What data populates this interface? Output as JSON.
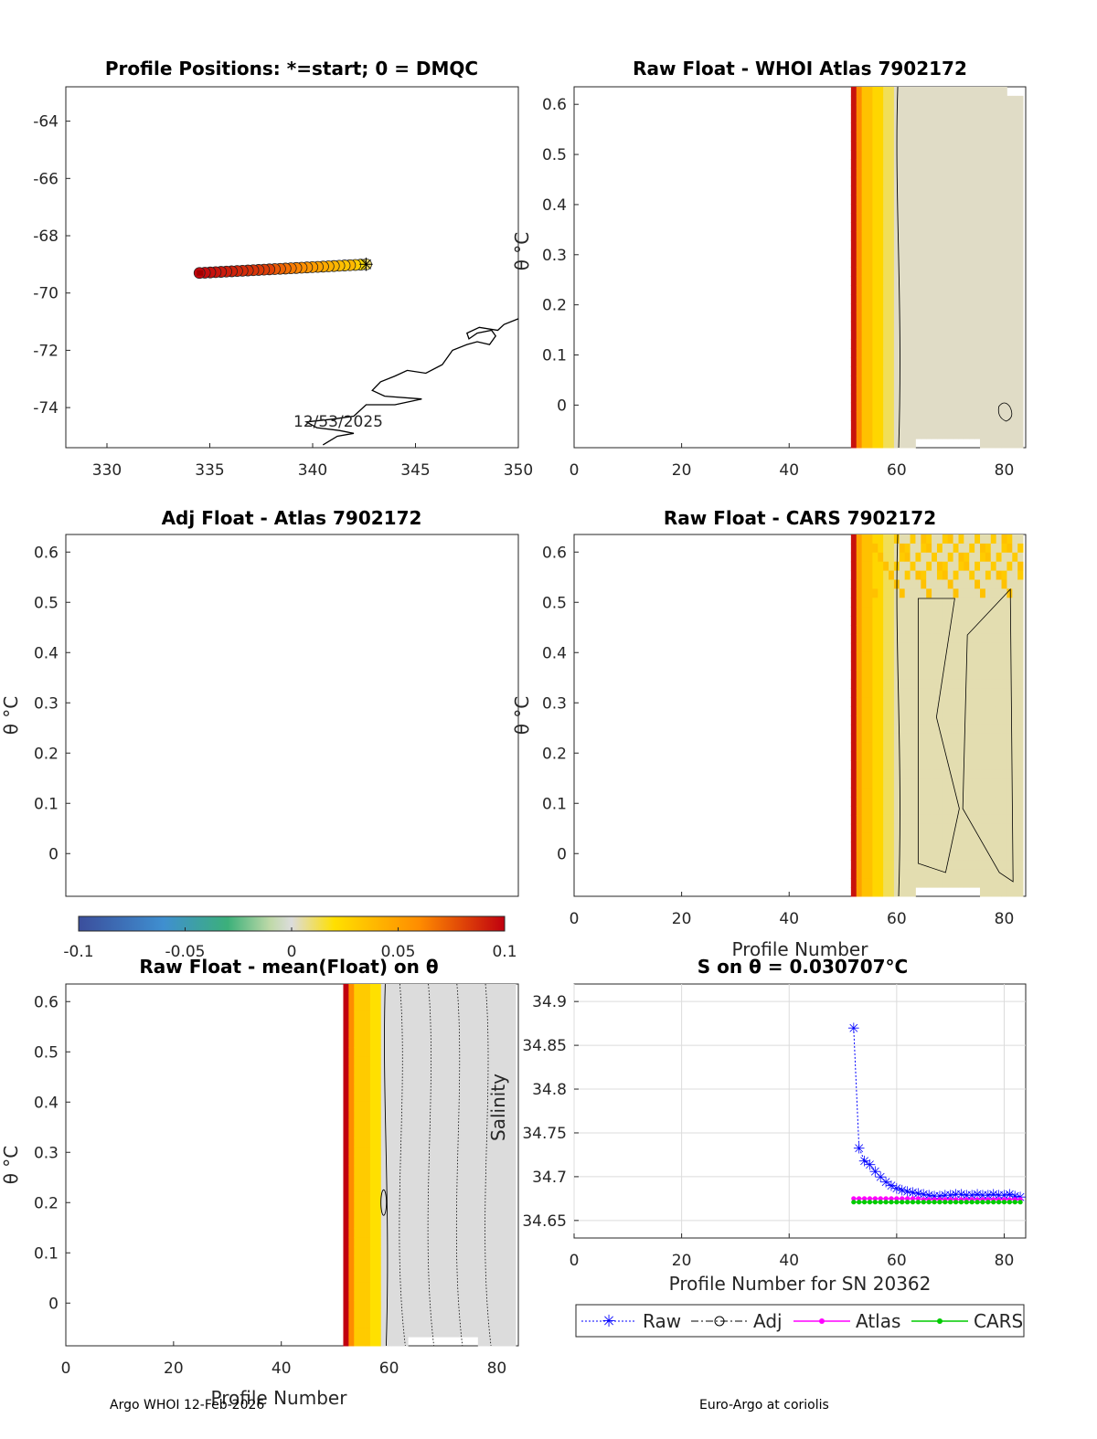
{
  "footer": {
    "left": "Argo WHOI 12-Feb-2026",
    "right": "Euro-Argo at coriolis"
  },
  "colorbar": {
    "ticks": [
      "-0.1",
      "-0.05",
      "0",
      "0.05",
      "0.1"
    ],
    "min": -0.1,
    "max": 0.1
  },
  "chart_data": [
    {
      "id": "map",
      "type": "scatter",
      "title": "Profile Positions: *=start; 0 = DMQC",
      "xlabel": "",
      "ylabel": "",
      "xlim": [
        328,
        350
      ],
      "ylim": [
        -75.4,
        -62.8
      ],
      "xticks": [
        "330",
        "335",
        "340",
        "345",
        "350"
      ],
      "yticks": [
        "-64",
        "-66",
        "-68",
        "-70",
        "-72",
        "-74"
      ],
      "annotation": "12/53/2025",
      "track": {
        "start_lon": 342.6,
        "start_lat": -69.0,
        "end_lon": 334.5,
        "end_lat": -69.3
      },
      "coastline": [
        [
          340.5,
          -75.3
        ],
        [
          341.2,
          -75.0
        ],
        [
          342.0,
          -74.9
        ],
        [
          341.3,
          -74.8
        ],
        [
          340.2,
          -74.7
        ],
        [
          339.7,
          -74.5
        ],
        [
          341.0,
          -74.4
        ],
        [
          342.0,
          -74.3
        ],
        [
          342.6,
          -73.9
        ],
        [
          344.0,
          -73.9
        ],
        [
          345.3,
          -73.7
        ],
        [
          343.5,
          -73.6
        ],
        [
          342.9,
          -73.4
        ],
        [
          343.3,
          -73.1
        ],
        [
          344.0,
          -72.9
        ],
        [
          344.6,
          -72.7
        ],
        [
          345.5,
          -72.8
        ],
        [
          346.3,
          -72.5
        ],
        [
          346.8,
          -72.0
        ],
        [
          347.5,
          -71.8
        ],
        [
          348.0,
          -71.7
        ],
        [
          348.6,
          -71.8
        ],
        [
          348.9,
          -71.5
        ],
        [
          348.7,
          -71.3
        ],
        [
          348.0,
          -71.4
        ],
        [
          347.6,
          -71.6
        ],
        [
          347.5,
          -71.4
        ],
        [
          348.1,
          -71.2
        ],
        [
          349.0,
          -71.3
        ],
        [
          349.3,
          -71.1
        ],
        [
          350,
          -70.9
        ]
      ]
    },
    {
      "id": "whoi",
      "type": "heatmap",
      "title": "Raw Float - WHOI Atlas  7902172",
      "xlabel": "",
      "ylabel": "θ °C",
      "xlim": [
        0,
        84
      ],
      "ylim": [
        -0.085,
        0.635
      ],
      "xticks": [
        "0",
        "20",
        "40",
        "60",
        "80"
      ],
      "yticks": [
        "0.6",
        "0.5",
        "0.4",
        "0.3",
        "0.2",
        "0.1",
        "0"
      ]
    },
    {
      "id": "adj",
      "type": "heatmap",
      "title": "Adj Float - Atlas  7902172",
      "xlabel": "",
      "ylabel": "θ °C",
      "xlim": [
        0,
        84
      ],
      "ylim": [
        -0.085,
        0.635
      ],
      "xticks": [
        "",
        "",
        "",
        "",
        ""
      ],
      "yticks": [
        "0.6",
        "0.5",
        "0.4",
        "0.3",
        "0.2",
        "0.1",
        "0"
      ]
    },
    {
      "id": "cars",
      "type": "heatmap",
      "title": "Raw Float - CARS  7902172",
      "xlabel": "Profile Number",
      "ylabel": "θ °C",
      "xlim": [
        0,
        84
      ],
      "ylim": [
        -0.085,
        0.635
      ],
      "xticks": [
        "0",
        "20",
        "40",
        "60",
        "80"
      ],
      "yticks": [
        "0.6",
        "0.5",
        "0.4",
        "0.3",
        "0.2",
        "0.1",
        "0"
      ]
    },
    {
      "id": "mean",
      "type": "heatmap",
      "title": "Raw Float - mean(Float) on θ",
      "xlabel": "Profile Number",
      "ylabel": "θ °C",
      "xlim": [
        0,
        84
      ],
      "ylim": [
        -0.085,
        0.635
      ],
      "xticks": [
        "0",
        "20",
        "40",
        "60",
        "80"
      ],
      "yticks": [
        "0.6",
        "0.5",
        "0.4",
        "0.3",
        "0.2",
        "0.1",
        "0"
      ]
    },
    {
      "id": "salt",
      "type": "line",
      "title": "S on θ = 0.030707°C",
      "xlabel": "Profile Number for SN 20362",
      "ylabel": "Salinity",
      "xlim": [
        0,
        84
      ],
      "ylim": [
        34.63,
        34.92
      ],
      "xticks": [
        "0",
        "20",
        "40",
        "60",
        "80"
      ],
      "yticks": [
        "34.9",
        "34.85",
        "34.8",
        "34.75",
        "34.7",
        "34.65"
      ],
      "legend": [
        "Raw",
        "Adj",
        "Atlas",
        "CARS"
      ],
      "x": [
        52,
        53,
        54,
        55,
        56,
        57,
        58,
        59,
        60,
        61,
        62,
        63,
        64,
        65,
        66,
        67,
        68,
        69,
        70,
        71,
        72,
        73,
        74,
        75,
        76,
        77,
        78,
        79,
        80,
        81,
        82,
        83
      ],
      "series": [
        {
          "name": "Raw",
          "color": "#0000ff",
          "values": [
            34.87,
            34.733,
            34.718,
            34.714,
            34.706,
            34.7,
            34.694,
            34.69,
            34.687,
            34.685,
            34.683,
            34.682,
            34.681,
            34.68,
            34.679,
            34.678,
            34.678,
            34.679,
            34.679,
            34.68,
            34.68,
            34.679,
            34.679,
            34.68,
            34.679,
            34.679,
            34.68,
            34.679,
            34.679,
            34.68,
            34.678,
            34.677
          ]
        },
        {
          "name": "Atlas",
          "color": "#ff00ff",
          "values": [
            34.675,
            34.675,
            34.675,
            34.675,
            34.675,
            34.675,
            34.675,
            34.675,
            34.675,
            34.675,
            34.675,
            34.675,
            34.675,
            34.674,
            34.674,
            34.674,
            34.674,
            34.674,
            34.674,
            34.674,
            34.674,
            34.674,
            34.674,
            34.674,
            34.674,
            34.674,
            34.674,
            34.674,
            34.674,
            34.674,
            34.674,
            34.674
          ]
        },
        {
          "name": "CARS",
          "color": "#00cc00",
          "values": [
            34.671,
            34.671,
            34.671,
            34.671,
            34.671,
            34.671,
            34.671,
            34.671,
            34.671,
            34.671,
            34.671,
            34.671,
            34.671,
            34.671,
            34.671,
            34.671,
            34.671,
            34.671,
            34.671,
            34.671,
            34.671,
            34.671,
            34.671,
            34.671,
            34.671,
            34.671,
            34.671,
            34.671,
            34.671,
            34.671,
            34.671,
            34.671
          ]
        }
      ]
    }
  ]
}
